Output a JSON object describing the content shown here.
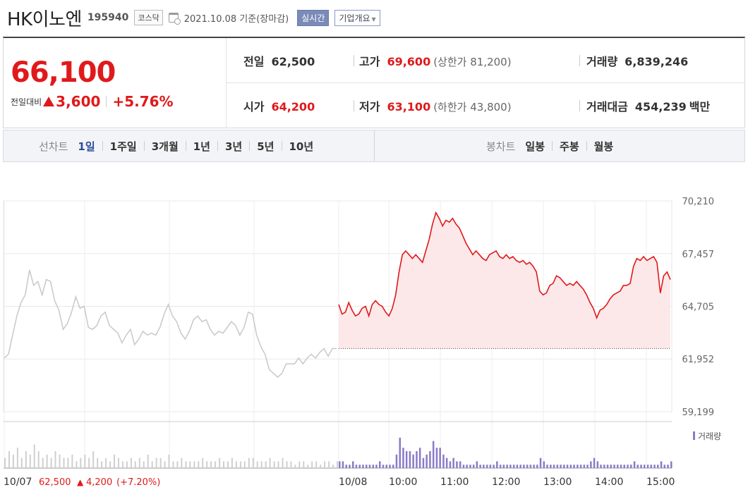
{
  "header": {
    "name": "HK이노엔",
    "code": "195940",
    "market": "코스닥",
    "date": "2021.10.08",
    "date_suffix": "기준(장마감)",
    "realtime_label": "실시간",
    "company_label": "기업개요"
  },
  "price": {
    "current": "66,100",
    "change_label": "전일대비",
    "change": "3,600",
    "change_pct": "+5.76%"
  },
  "stats": {
    "prev_close_label": "전일",
    "prev_close": "62,500",
    "high_label": "고가",
    "high": "69,600",
    "upper_limit": "(상한가 81,200)",
    "volume_label": "거래량",
    "volume": "6,839,246",
    "open_label": "시가",
    "open": "64,200",
    "low_label": "저가",
    "low": "63,100",
    "lower_limit": "(하한가 43,800)",
    "amount_label": "거래대금",
    "amount": "454,239",
    "amount_unit": "백만"
  },
  "tabs": {
    "line_label": "선차트",
    "line_periods": [
      "1일",
      "1주일",
      "3개월",
      "1년",
      "3년",
      "5년",
      "10년"
    ],
    "active_period": "1일",
    "candle_label": "봉차트",
    "candle_periods": [
      "일봉",
      "주봉",
      "월봉"
    ]
  },
  "colors": {
    "up": "#e0191b",
    "prev_day_line": "#c8c8c8",
    "fill": "#fde8e9",
    "volume": "#8a7ac8"
  },
  "chart_data": {
    "type": "line",
    "y_ticks": [
      "70,210",
      "67,457",
      "64,705",
      "61,952",
      "59,199"
    ],
    "y_tick_values": [
      70210,
      67457,
      64705,
      61952,
      59199
    ],
    "ylim": [
      59199,
      70210
    ],
    "x_labels": [
      "10/07",
      "10/08",
      "10:00",
      "11:00",
      "12:00",
      "13:00",
      "14:00",
      "15:00"
    ],
    "baseline": 62500,
    "prev_day_info": {
      "label": "10/07",
      "close": "62,500",
      "change": "4,200",
      "pct": "(+7.20%)"
    },
    "volume_label": "거래량",
    "prev_day_series": [
      62000,
      62200,
      63200,
      64200,
      64900,
      65300,
      66600,
      65800,
      66000,
      65300,
      66100,
      66000,
      65000,
      64500,
      63500,
      63800,
      64400,
      65200,
      64600,
      64700,
      63600,
      63500,
      63700,
      64200,
      64400,
      63700,
      63500,
      63300,
      62800,
      63200,
      63500,
      62700,
      63000,
      63400,
      63200,
      63300,
      63200,
      63600,
      64300,
      64800,
      64200,
      63900,
      63300,
      63000,
      63400,
      64000,
      64200,
      63900,
      64000,
      63500,
      63200,
      63400,
      63300,
      63600,
      63900,
      63700,
      63200,
      63600,
      64400,
      64300,
      63200,
      62600,
      62200,
      61400,
      61200,
      61000,
      61200,
      61700,
      61700,
      61700,
      62000,
      61700,
      62000,
      62200,
      62000,
      62300,
      62500,
      62100,
      62500,
      62500
    ],
    "today_series": [
      64800,
      64300,
      64400,
      64900,
      64500,
      64200,
      64300,
      64600,
      64700,
      64200,
      64800,
      65000,
      64800,
      64700,
      64400,
      64200,
      64600,
      65300,
      66500,
      67400,
      67600,
      67400,
      67200,
      67400,
      67200,
      67000,
      67600,
      68200,
      69000,
      69600,
      69300,
      68900,
      69200,
      69100,
      69300,
      69000,
      68800,
      68400,
      68000,
      67700,
      67400,
      67600,
      67400,
      67200,
      67100,
      67400,
      67500,
      67600,
      67300,
      67200,
      67400,
      67200,
      67300,
      67100,
      67000,
      67100,
      66900,
      67000,
      66800,
      66500,
      65500,
      65300,
      65400,
      65800,
      65900,
      66300,
      66200,
      66000,
      65800,
      65900,
      65800,
      66000,
      65800,
      65600,
      65300,
      64900,
      64600,
      64100,
      64500,
      64600,
      64800,
      65100,
      65300,
      65400,
      65500,
      65800,
      65800,
      65900,
      66800,
      67200,
      67100,
      67300,
      67100,
      67200,
      67300,
      67000,
      65400,
      66300,
      66500,
      66100
    ],
    "prev_day_volume": [
      3,
      5,
      4,
      6,
      3,
      5,
      4,
      7,
      5,
      3,
      4,
      3,
      5,
      4,
      3,
      3,
      4,
      2,
      3,
      4,
      3,
      5,
      3,
      2,
      3,
      2,
      4,
      3,
      2,
      2,
      3,
      2,
      3,
      2,
      4,
      2,
      3,
      3,
      2,
      4,
      2,
      2,
      3,
      2,
      2,
      2,
      2,
      3,
      2,
      2,
      2,
      3,
      2,
      2,
      3,
      2,
      2,
      2,
      3,
      3,
      2,
      2,
      2,
      3,
      2,
      2,
      3,
      2,
      2,
      1,
      2,
      2,
      1,
      2,
      2,
      1,
      2,
      2,
      1,
      2
    ],
    "today_volume": [
      2,
      2,
      1,
      1,
      2,
      1,
      1,
      1,
      1,
      1,
      1,
      1,
      2,
      1,
      1,
      1,
      1,
      4,
      9,
      6,
      5,
      5,
      4,
      5,
      6,
      3,
      4,
      5,
      8,
      6,
      6,
      4,
      3,
      2,
      3,
      2,
      2,
      1,
      1,
      1,
      1,
      2,
      1,
      1,
      1,
      1,
      1,
      2,
      1,
      1,
      1,
      1,
      1,
      1,
      1,
      1,
      1,
      1,
      1,
      1,
      3,
      2,
      1,
      1,
      1,
      1,
      1,
      1,
      1,
      1,
      1,
      1,
      1,
      1,
      1,
      2,
      3,
      2,
      1,
      1,
      1,
      1,
      1,
      1,
      1,
      1,
      1,
      1,
      2,
      1,
      1,
      1,
      1,
      1,
      1,
      1,
      2,
      1,
      1,
      2
    ]
  }
}
